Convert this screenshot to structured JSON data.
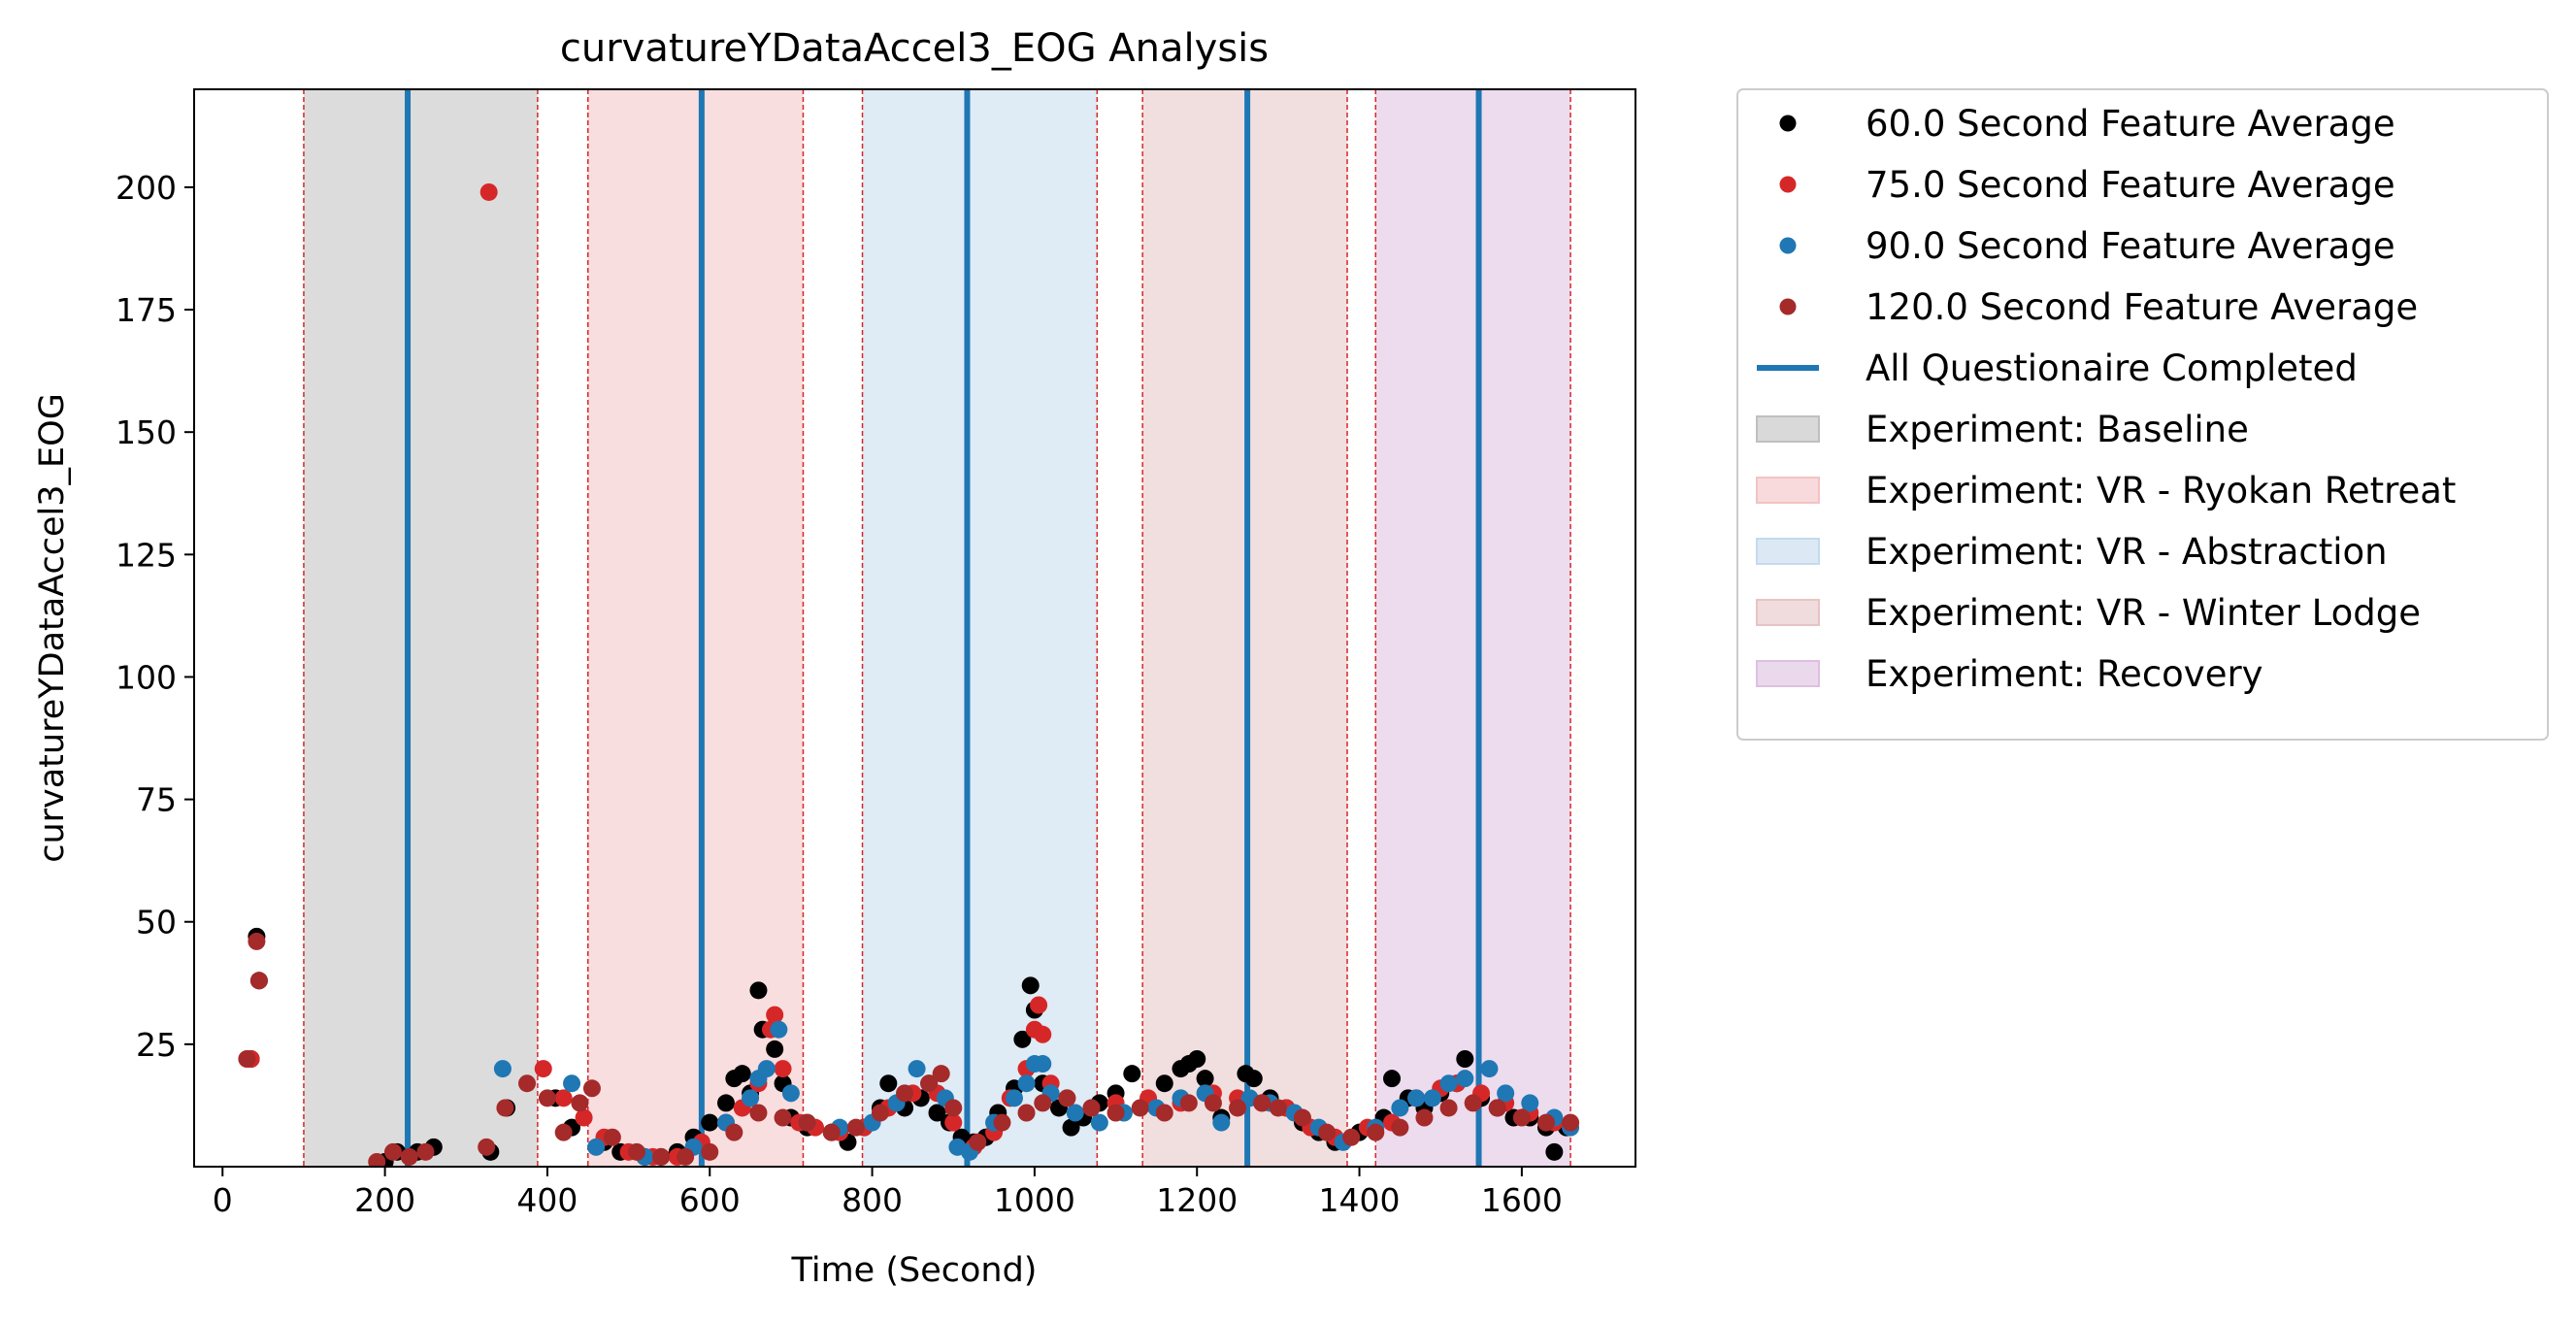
{
  "chart_data": {
    "type": "scatter",
    "title": "curvatureYDataAccel3_EOG Analysis",
    "xlabel": "Time (Second)",
    "ylabel": "curvatureYDataAccel3_EOG",
    "xlim": [
      -35,
      1740
    ],
    "ylim": [
      0,
      220
    ],
    "xticks": [
      0,
      200,
      400,
      600,
      800,
      1000,
      1200,
      1400,
      1600
    ],
    "yticks": [
      25,
      50,
      75,
      100,
      125,
      150,
      175,
      200
    ],
    "grid": false,
    "legend_position": "outside-right-top",
    "spans": [
      {
        "name": "Experiment: Baseline",
        "start": 100,
        "end": 388,
        "color": "#bfbfbf"
      },
      {
        "name": "Experiment: VR - Ryokan Retreat",
        "start": 450,
        "end": 715,
        "color": "#f4c2c4"
      },
      {
        "name": "Experiment: VR - Abstraction",
        "start": 788,
        "end": 1077,
        "color": "#c4daec"
      },
      {
        "name": "Experiment: VR - Winter Lodge",
        "start": 1133,
        "end": 1385,
        "color": "#e6c4c4"
      },
      {
        "name": "Experiment: Recovery",
        "start": 1420,
        "end": 1660,
        "color": "#dcc0e0"
      }
    ],
    "vlines": {
      "name": "All Questionaire Completed",
      "color": "#1f77b4",
      "x": [
        228,
        590,
        917,
        1262,
        1547
      ]
    },
    "series": [
      {
        "name": "60.0 Second Feature Average",
        "color": "#000000",
        "points": [
          [
            35,
            22
          ],
          [
            42,
            47
          ],
          [
            45,
            38
          ],
          [
            200,
            1
          ],
          [
            215,
            3
          ],
          [
            240,
            3
          ],
          [
            260,
            4
          ],
          [
            330,
            3
          ],
          [
            350,
            12
          ],
          [
            410,
            14
          ],
          [
            430,
            8
          ],
          [
            470,
            5
          ],
          [
            490,
            3
          ],
          [
            520,
            2
          ],
          [
            540,
            2
          ],
          [
            560,
            3
          ],
          [
            580,
            6
          ],
          [
            600,
            9
          ],
          [
            620,
            13
          ],
          [
            630,
            18
          ],
          [
            640,
            19
          ],
          [
            650,
            15
          ],
          [
            660,
            36
          ],
          [
            665,
            28
          ],
          [
            680,
            24
          ],
          [
            690,
            17
          ],
          [
            700,
            10
          ],
          [
            720,
            8
          ],
          [
            750,
            7
          ],
          [
            770,
            5
          ],
          [
            790,
            8
          ],
          [
            810,
            12
          ],
          [
            820,
            17
          ],
          [
            840,
            12
          ],
          [
            860,
            14
          ],
          [
            880,
            11
          ],
          [
            895,
            9
          ],
          [
            910,
            6
          ],
          [
            925,
            5
          ],
          [
            940,
            6
          ],
          [
            955,
            11
          ],
          [
            975,
            16
          ],
          [
            985,
            26
          ],
          [
            995,
            37
          ],
          [
            1000,
            32
          ],
          [
            1010,
            17
          ],
          [
            1030,
            12
          ],
          [
            1045,
            8
          ],
          [
            1060,
            10
          ],
          [
            1080,
            13
          ],
          [
            1100,
            15
          ],
          [
            1120,
            19
          ],
          [
            1140,
            13
          ],
          [
            1160,
            17
          ],
          [
            1180,
            20
          ],
          [
            1190,
            21
          ],
          [
            1200,
            22
          ],
          [
            1210,
            18
          ],
          [
            1230,
            10
          ],
          [
            1260,
            19
          ],
          [
            1270,
            18
          ],
          [
            1290,
            14
          ],
          [
            1310,
            12
          ],
          [
            1330,
            9
          ],
          [
            1350,
            7
          ],
          [
            1370,
            5
          ],
          [
            1400,
            7
          ],
          [
            1430,
            10
          ],
          [
            1440,
            18
          ],
          [
            1460,
            14
          ],
          [
            1480,
            12
          ],
          [
            1500,
            15
          ],
          [
            1520,
            17
          ],
          [
            1530,
            22
          ],
          [
            1550,
            14
          ],
          [
            1570,
            12
          ],
          [
            1590,
            10
          ],
          [
            1610,
            10
          ],
          [
            1630,
            8
          ],
          [
            1640,
            3
          ],
          [
            1655,
            8
          ]
        ]
      },
      {
        "name": "75.0 Second Feature Average",
        "color": "#d62728",
        "points": [
          [
            35,
            22
          ],
          [
            328,
            199
          ],
          [
            395,
            20
          ],
          [
            420,
            14
          ],
          [
            445,
            10
          ],
          [
            470,
            6
          ],
          [
            500,
            3
          ],
          [
            530,
            2
          ],
          [
            560,
            2
          ],
          [
            590,
            5
          ],
          [
            620,
            9
          ],
          [
            640,
            12
          ],
          [
            660,
            17
          ],
          [
            675,
            28
          ],
          [
            680,
            31
          ],
          [
            690,
            20
          ],
          [
            710,
            9
          ],
          [
            730,
            8
          ],
          [
            760,
            7
          ],
          [
            790,
            8
          ],
          [
            820,
            12
          ],
          [
            850,
            15
          ],
          [
            870,
            17
          ],
          [
            880,
            15
          ],
          [
            900,
            9
          ],
          [
            925,
            4
          ],
          [
            950,
            7
          ],
          [
            970,
            14
          ],
          [
            990,
            20
          ],
          [
            1000,
            28
          ],
          [
            1005,
            33
          ],
          [
            1010,
            27
          ],
          [
            1020,
            17
          ],
          [
            1040,
            14
          ],
          [
            1070,
            12
          ],
          [
            1100,
            13
          ],
          [
            1140,
            14
          ],
          [
            1180,
            13
          ],
          [
            1220,
            15
          ],
          [
            1250,
            14
          ],
          [
            1280,
            13
          ],
          [
            1310,
            12
          ],
          [
            1340,
            8
          ],
          [
            1370,
            6
          ],
          [
            1410,
            8
          ],
          [
            1440,
            9
          ],
          [
            1470,
            14
          ],
          [
            1500,
            16
          ],
          [
            1520,
            17
          ],
          [
            1550,
            15
          ],
          [
            1580,
            13
          ],
          [
            1610,
            11
          ],
          [
            1640,
            9
          ]
        ]
      },
      {
        "name": "90.0 Second Feature Average",
        "color": "#1f77b4",
        "points": [
          [
            345,
            20
          ],
          [
            430,
            17
          ],
          [
            460,
            4
          ],
          [
            520,
            2
          ],
          [
            580,
            4
          ],
          [
            620,
            9
          ],
          [
            650,
            14
          ],
          [
            660,
            18
          ],
          [
            670,
            20
          ],
          [
            685,
            28
          ],
          [
            700,
            15
          ],
          [
            720,
            9
          ],
          [
            760,
            8
          ],
          [
            800,
            9
          ],
          [
            830,
            13
          ],
          [
            855,
            20
          ],
          [
            870,
            17
          ],
          [
            890,
            14
          ],
          [
            905,
            4
          ],
          [
            920,
            3
          ],
          [
            950,
            9
          ],
          [
            975,
            14
          ],
          [
            990,
            17
          ],
          [
            1000,
            21
          ],
          [
            1010,
            21
          ],
          [
            1020,
            15
          ],
          [
            1050,
            11
          ],
          [
            1080,
            9
          ],
          [
            1110,
            11
          ],
          [
            1150,
            12
          ],
          [
            1180,
            14
          ],
          [
            1210,
            15
          ],
          [
            1230,
            9
          ],
          [
            1265,
            14
          ],
          [
            1290,
            13
          ],
          [
            1320,
            11
          ],
          [
            1350,
            8
          ],
          [
            1380,
            5
          ],
          [
            1420,
            8
          ],
          [
            1450,
            12
          ],
          [
            1470,
            14
          ],
          [
            1490,
            14
          ],
          [
            1510,
            17
          ],
          [
            1530,
            18
          ],
          [
            1560,
            20
          ],
          [
            1580,
            15
          ],
          [
            1610,
            13
          ],
          [
            1640,
            10
          ],
          [
            1660,
            8
          ]
        ]
      },
      {
        "name": "120.0 Second Feature Average",
        "color": "#a52a2a",
        "points": [
          [
            30,
            22
          ],
          [
            42,
            46
          ],
          [
            45,
            38
          ],
          [
            190,
            1
          ],
          [
            210,
            3
          ],
          [
            230,
            2
          ],
          [
            250,
            3
          ],
          [
            325,
            4
          ],
          [
            348,
            12
          ],
          [
            375,
            17
          ],
          [
            400,
            14
          ],
          [
            420,
            7
          ],
          [
            440,
            13
          ],
          [
            455,
            16
          ],
          [
            480,
            6
          ],
          [
            510,
            3
          ],
          [
            540,
            2
          ],
          [
            570,
            2
          ],
          [
            600,
            3
          ],
          [
            630,
            7
          ],
          [
            660,
            11
          ],
          [
            690,
            10
          ],
          [
            720,
            9
          ],
          [
            750,
            7
          ],
          [
            780,
            8
          ],
          [
            810,
            11
          ],
          [
            840,
            15
          ],
          [
            870,
            17
          ],
          [
            885,
            19
          ],
          [
            900,
            12
          ],
          [
            930,
            5
          ],
          [
            960,
            9
          ],
          [
            990,
            11
          ],
          [
            1010,
            13
          ],
          [
            1040,
            14
          ],
          [
            1070,
            12
          ],
          [
            1100,
            11
          ],
          [
            1130,
            12
          ],
          [
            1160,
            11
          ],
          [
            1190,
            13
          ],
          [
            1220,
            13
          ],
          [
            1250,
            12
          ],
          [
            1280,
            13
          ],
          [
            1300,
            12
          ],
          [
            1330,
            10
          ],
          [
            1360,
            7
          ],
          [
            1390,
            6
          ],
          [
            1420,
            7
          ],
          [
            1450,
            8
          ],
          [
            1480,
            10
          ],
          [
            1510,
            12
          ],
          [
            1540,
            13
          ],
          [
            1570,
            12
          ],
          [
            1600,
            10
          ],
          [
            1630,
            9
          ],
          [
            1660,
            9
          ]
        ]
      }
    ],
    "legend": [
      {
        "kind": "marker",
        "label": "60.0 Second Feature Average",
        "color": "#000000"
      },
      {
        "kind": "marker",
        "label": "75.0 Second Feature Average",
        "color": "#d62728"
      },
      {
        "kind": "marker",
        "label": "90.0 Second Feature Average",
        "color": "#1f77b4"
      },
      {
        "kind": "marker",
        "label": "120.0 Second Feature Average",
        "color": "#a52a2a"
      },
      {
        "kind": "line",
        "label": "All Questionaire Completed",
        "color": "#1f77b4"
      },
      {
        "kind": "patch",
        "label": "Experiment: Baseline",
        "color": "#bfbfbf"
      },
      {
        "kind": "patch",
        "label": "Experiment: VR - Ryokan Retreat",
        "color": "#f4c2c4"
      },
      {
        "kind": "patch",
        "label": "Experiment: VR - Abstraction",
        "color": "#c4daec"
      },
      {
        "kind": "patch",
        "label": "Experiment: VR - Winter Lodge",
        "color": "#e6c4c4"
      },
      {
        "kind": "patch",
        "label": "Experiment: Recovery",
        "color": "#dcc0e0"
      }
    ]
  }
}
